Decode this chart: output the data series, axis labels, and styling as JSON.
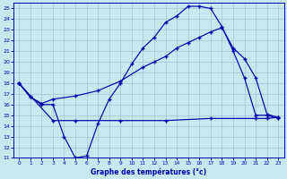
{
  "title": "Graphe des températures (°c)",
  "bg_color": "#c8e8f0",
  "grid_color": "#a0c4d8",
  "line_color": "#0000aa",
  "xlim": [
    -0.5,
    23.5
  ],
  "ylim": [
    11,
    25.5
  ],
  "xticks": [
    0,
    1,
    2,
    3,
    4,
    5,
    6,
    7,
    8,
    9,
    10,
    11,
    12,
    13,
    14,
    15,
    16,
    17,
    18,
    19,
    20,
    21,
    22,
    23
  ],
  "yticks": [
    11,
    12,
    13,
    14,
    15,
    16,
    17,
    18,
    19,
    20,
    21,
    22,
    23,
    24,
    25
  ],
  "line1_x": [
    0,
    1,
    2,
    3,
    4,
    5,
    6,
    7,
    8,
    9,
    10,
    11,
    12,
    13,
    14,
    15,
    16,
    17,
    18,
    19,
    20,
    21,
    22,
    23
  ],
  "line1_y": [
    18.0,
    16.7,
    16.0,
    16.0,
    13.0,
    11.0,
    11.2,
    14.2,
    16.5,
    18.0,
    19.8,
    21.3,
    22.3,
    23.7,
    24.3,
    25.2,
    25.2,
    25.0,
    23.3,
    21.0,
    18.5,
    15.0,
    15.0,
    14.7
  ],
  "line2_x": [
    0,
    1,
    2,
    3,
    5,
    7,
    9,
    11,
    12,
    13,
    14,
    15,
    16,
    17,
    18,
    19,
    20,
    21,
    22,
    23
  ],
  "line2_y": [
    18.0,
    16.7,
    16.1,
    16.5,
    16.8,
    17.3,
    18.2,
    19.5,
    20.0,
    20.5,
    21.3,
    21.8,
    22.3,
    22.8,
    23.2,
    21.3,
    20.3,
    18.5,
    15.1,
    14.8
  ],
  "line3_x": [
    0,
    3,
    5,
    9,
    13,
    17,
    21,
    22,
    23
  ],
  "line3_y": [
    18.0,
    14.5,
    14.5,
    14.5,
    14.5,
    14.7,
    14.7,
    14.7,
    14.8
  ]
}
